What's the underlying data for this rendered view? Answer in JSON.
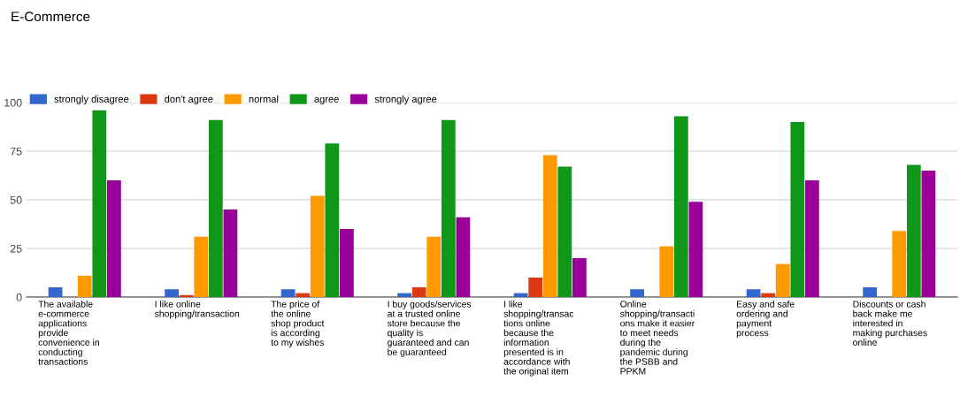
{
  "chart_data": {
    "type": "bar",
    "title": "E-Commerce",
    "categories": [
      "The available\ne-commerce\napplications\nprovide\nconvenience in\nconducting\ntransactions",
      "I like online\nshopping/transaction",
      "The price of\nthe online\nshop product\nis according\nto my wishes",
      "I buy goods/services\nat a trusted online\nstore because the\nquality is\nguaranteed and can\nbe guaranteed",
      "I like\nshopping/transac\ntions online\nbecause the\ninformation\npresented is in\naccordance with\nthe original item",
      "Online\nshopping/transacti\nons make it easier\nto meet needs\nduring the\npandemic during\nthe PSBB and\nPPKM",
      "Easy and safe\nordering and\npayment\nprocess",
      "Discounts or cash\nback make me\ninterested in\nmaking purchases\nonline"
    ],
    "series": [
      {
        "name": "strongly disagree",
        "color": "#3366cc",
        "values": [
          5,
          4,
          4,
          2,
          2,
          4,
          4,
          5
        ]
      },
      {
        "name": "don't agree",
        "color": "#dc3912",
        "values": [
          0,
          1,
          2,
          5,
          10,
          0,
          2,
          0
        ]
      },
      {
        "name": "normal",
        "color": "#ff9900",
        "values": [
          11,
          31,
          52,
          31,
          73,
          26,
          17,
          34
        ]
      },
      {
        "name": "agree",
        "color": "#109618",
        "values": [
          96,
          91,
          79,
          91,
          67,
          93,
          90,
          68
        ]
      },
      {
        "name": "strongly agree",
        "color": "#990099",
        "values": [
          60,
          45,
          35,
          41,
          20,
          49,
          60,
          65
        ]
      }
    ],
    "ylim": [
      0,
      100
    ],
    "yticks": [
      0,
      25,
      50,
      75,
      100
    ],
    "grid": "y",
    "legend": "top left"
  }
}
